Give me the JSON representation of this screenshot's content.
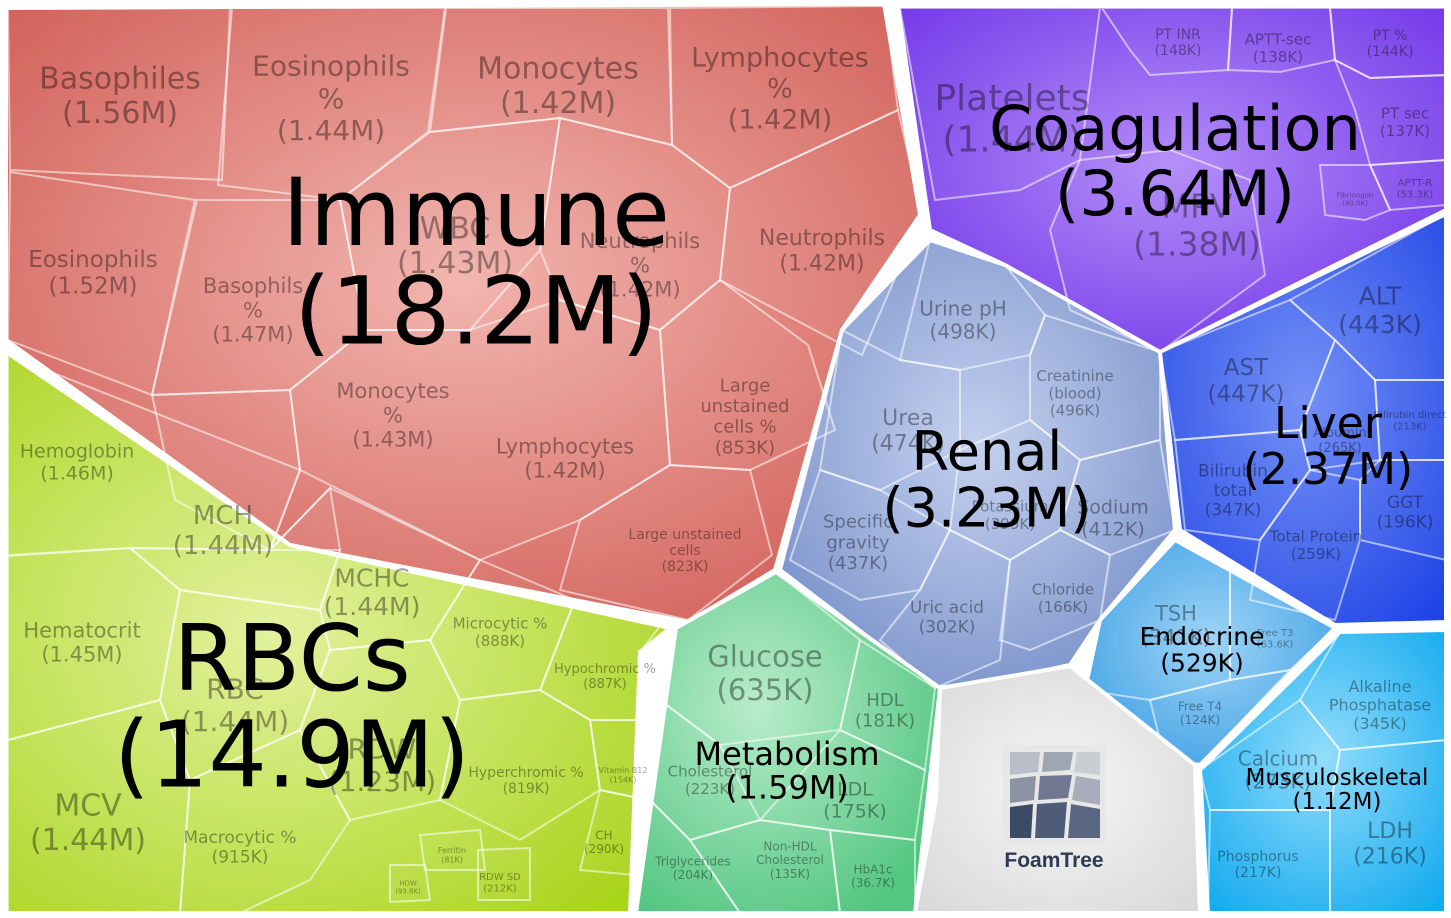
{
  "chart_data": {
    "type": "treemap",
    "title": "",
    "groups": [
      {
        "name": "Immune",
        "value_label": "(18.2M)",
        "color": "#d9635a",
        "children": [
          {
            "name": "Basophiles",
            "value_label": "(1.56M)"
          },
          {
            "name": "Eosinophils %",
            "value_label": "(1.44M)"
          },
          {
            "name": "Monocytes",
            "value_label": "(1.42M)"
          },
          {
            "name": "Lymphocytes %",
            "value_label": "(1.42M)"
          },
          {
            "name": "Eosinophils",
            "value_label": "(1.52M)"
          },
          {
            "name": "Basophils %",
            "value_label": "(1.47M)"
          },
          {
            "name": "WBC",
            "value_label": "(1.43M)"
          },
          {
            "name": "Neutrophils %",
            "value_label": "(1.42M)"
          },
          {
            "name": "Neutrophils",
            "value_label": "(1.42M)"
          },
          {
            "name": "Monocytes %",
            "value_label": "(1.43M)"
          },
          {
            "name": "Lymphocytes",
            "value_label": "(1.42M)"
          },
          {
            "name": "Large unstained cells %",
            "value_label": "(853K)"
          },
          {
            "name": "Large unstained cells",
            "value_label": "(823K)"
          }
        ]
      },
      {
        "name": "Coagulation",
        "value_label": "(3.64M)",
        "color": "#7b3ff0",
        "children": [
          {
            "name": "Platelets",
            "value_label": "(1.44M)"
          },
          {
            "name": "MPV",
            "value_label": "(1.38M)"
          },
          {
            "name": "PT INR",
            "value_label": "(148K)"
          },
          {
            "name": "APTT-sec",
            "value_label": "(138K)"
          },
          {
            "name": "PT %",
            "value_label": "(144K)"
          },
          {
            "name": "PT sec",
            "value_label": "(137K)"
          },
          {
            "name": "APTT-R",
            "value_label": "(53.3K)"
          },
          {
            "name": "Fibrinogen",
            "value_label": "(80.0K)"
          }
        ]
      },
      {
        "name": "RBCs",
        "value_label": "(14.9M)",
        "color": "#b6dc2e",
        "children": [
          {
            "name": "Hemoglobin",
            "value_label": "(1.46M)"
          },
          {
            "name": "MCH",
            "value_label": "(1.44M)"
          },
          {
            "name": "MCHC",
            "value_label": "(1.44M)"
          },
          {
            "name": "Hematocrit",
            "value_label": "(1.45M)"
          },
          {
            "name": "RBC",
            "value_label": "(1.44M)"
          },
          {
            "name": "RDW",
            "value_label": "(1.23M)"
          },
          {
            "name": "MCV",
            "value_label": "(1.44M)"
          },
          {
            "name": "Microcytic %",
            "value_label": "(888K)"
          },
          {
            "name": "Hypochromic %",
            "value_label": "(887K)"
          },
          {
            "name": "Hyperchromic %",
            "value_label": "(819K)"
          },
          {
            "name": "Macrocytic %",
            "value_label": "(915K)"
          },
          {
            "name": "Vitamin B12",
            "value_label": "(154K)"
          },
          {
            "name": "CH",
            "value_label": "(290K)"
          },
          {
            "name": "Ferritin",
            "value_label": "(81K)"
          },
          {
            "name": "RDW SD",
            "value_label": "(212K)"
          },
          {
            "name": "HDW",
            "value_label": "(93.8K)"
          }
        ]
      },
      {
        "name": "Renal",
        "value_label": "(3.23M)",
        "color": "#7f98cf",
        "children": [
          {
            "name": "Urine pH",
            "value_label": "(498K)"
          },
          {
            "name": "Creatinine (blood)",
            "value_label": "(496K)"
          },
          {
            "name": "Urea",
            "value_label": "(474K)"
          },
          {
            "name": "Sodium",
            "value_label": "(412K)"
          },
          {
            "name": "Potassium",
            "value_label": "(399K)"
          },
          {
            "name": "Specific gravity",
            "value_label": "(437K)"
          },
          {
            "name": "Uric acid",
            "value_label": "(302K)"
          },
          {
            "name": "Chloride",
            "value_label": "(166K)"
          }
        ]
      },
      {
        "name": "Liver",
        "value_label": "(2.37M)",
        "color": "#2f57ee",
        "children": [
          {
            "name": "ALT",
            "value_label": "(443K)"
          },
          {
            "name": "AST",
            "value_label": "(447K)"
          },
          {
            "name": "Albumin",
            "value_label": "(265K)"
          },
          {
            "name": "Bilirubin direct",
            "value_label": "(213K)"
          },
          {
            "name": "Bilirubin total",
            "value_label": "(347K)"
          },
          {
            "name": "GGT",
            "value_label": "(196K)"
          },
          {
            "name": "Total Protein",
            "value_label": "(259K)"
          }
        ]
      },
      {
        "name": "Metabolism",
        "value_label": "(1.59M)",
        "color": "#5fcf8c",
        "children": [
          {
            "name": "Glucose",
            "value_label": "(635K)"
          },
          {
            "name": "HDL",
            "value_label": "(181K)"
          },
          {
            "name": "Cholesterol",
            "value_label": "(223K)"
          },
          {
            "name": "LDL",
            "value_label": "(175K)"
          },
          {
            "name": "Triglycerides",
            "value_label": "(204K)"
          },
          {
            "name": "Non-HDL Cholesterol",
            "value_label": "(135K)"
          },
          {
            "name": "HbA1c",
            "value_label": "(36.7K)"
          }
        ]
      },
      {
        "name": "Endocrine",
        "value_label": "(529K)",
        "color": "#3fa8ec",
        "children": [
          {
            "name": "TSH",
            "value_label": "(341K)"
          },
          {
            "name": "Free T3",
            "value_label": "(63.6K)"
          },
          {
            "name": "Free T4",
            "value_label": "(124K)"
          }
        ]
      },
      {
        "name": "Musculoskeletal",
        "value_label": "(1.12M)",
        "color": "#19b6f2",
        "children": [
          {
            "name": "Alkaline Phosphatase",
            "value_label": "(345K)"
          },
          {
            "name": "Calcium",
            "value_label": "(273K)"
          },
          {
            "name": "LDH",
            "value_label": "(216K)"
          },
          {
            "name": "Phosphorus",
            "value_label": "(217K)"
          }
        ]
      }
    ],
    "branding": "FoamTree"
  }
}
